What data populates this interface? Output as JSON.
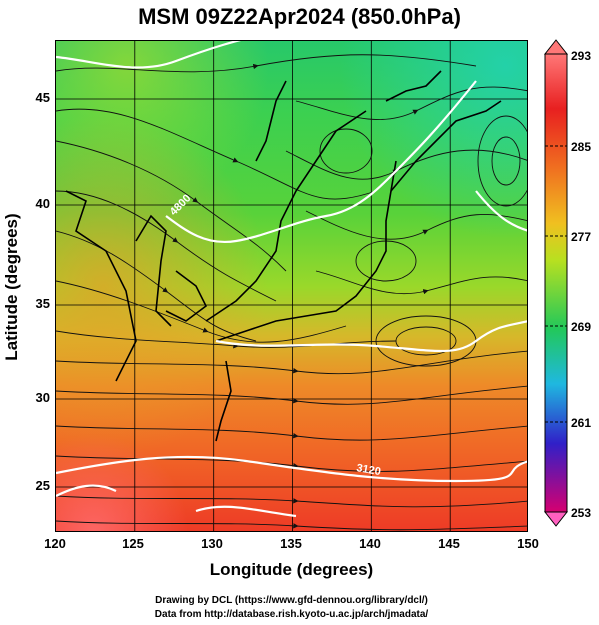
{
  "title": "MSM 09Z22Apr2024 (850.0hPa)",
  "axes": {
    "xlabel": "Longitude (degrees)",
    "ylabel": "Latitude (degrees)",
    "xticks": [
      "120",
      "125",
      "130",
      "135",
      "140",
      "145",
      "150"
    ],
    "yticks": [
      "25",
      "30",
      "35",
      "40",
      "45"
    ],
    "xlim": [
      120,
      150
    ],
    "ylim": [
      22.4,
      47.6
    ]
  },
  "colorbar": {
    "labels": [
      "293",
      "285",
      "277",
      "269",
      "261",
      "253"
    ],
    "range": [
      253,
      293
    ],
    "colors": [
      "#d60070",
      "#3020c8",
      "#1fb8e0",
      "#22c85a",
      "#b8e020",
      "#f0c020",
      "#f07020",
      "#e82020",
      "#ff7777"
    ]
  },
  "contour_labels": [
    "4800",
    "3120"
  ],
  "credits": {
    "line1": "Drawing by DCL (https://www.gfd-dennou.org/library/dcl/)",
    "line2": "Data from http://database.rish.kyoto-u.ac.jp/arch/jmadata/"
  },
  "chart_data": {
    "type": "heatmap",
    "title": "MSM 09Z22Apr2024 (850.0hPa)",
    "xlabel": "Longitude (degrees)",
    "ylabel": "Latitude (degrees)",
    "xlim": [
      120,
      150
    ],
    "ylim": [
      22.4,
      47.6
    ],
    "colorbar_range": [
      253,
      293
    ],
    "colorbar_ticks": [
      293,
      285,
      277,
      269,
      261,
      253
    ],
    "overlays": [
      "streamlines",
      "geopotential height contours",
      "coastlines",
      "grid"
    ],
    "contour_labels": [
      "4800",
      "3120"
    ],
    "grid": true
  }
}
